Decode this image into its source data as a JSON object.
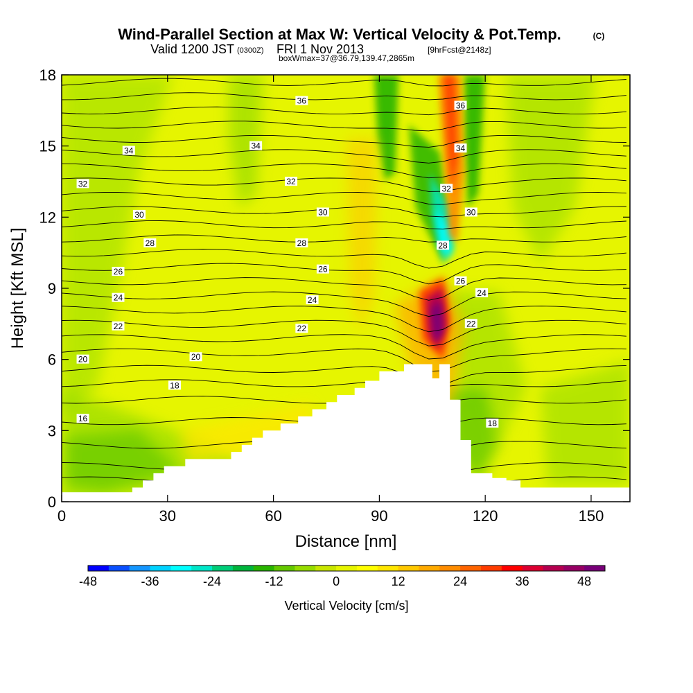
{
  "title": {
    "main": "Wind-Parallel Section at Max W: Vertical Velocity & Pot.Temp.",
    "copyright": "(C)",
    "valid_prefix": "Valid 1200 JST",
    "valid_utc": "(0300Z)",
    "valid_date": "FRI 1 Nov 2013",
    "forecast": "[9hrFcst@2148z]",
    "box_info": "boxWmax=37@36.79,139.47,2865m"
  },
  "chart_data": {
    "type": "heatmap",
    "xlabel": "Distance [nm]",
    "ylabel": "Height [Kft MSL]",
    "xlim": [
      0,
      161
    ],
    "ylim": [
      0,
      18
    ],
    "xticks": [
      "0",
      "30",
      "60",
      "90",
      "120",
      "150"
    ],
    "yticks": [
      "0",
      "3",
      "6",
      "9",
      "12",
      "15",
      "18"
    ],
    "colorbar": {
      "label": "Vertical Velocity [cm/s]",
      "range": [
        -48,
        52
      ],
      "step": 4,
      "ticks": [
        "-48",
        "-36",
        "-24",
        "-12",
        "0",
        "12",
        "24",
        "36",
        "48"
      ],
      "colors": [
        "#0000ff",
        "#0a50ff",
        "#1496ff",
        "#00d2ff",
        "#00ffff",
        "#00e6c8",
        "#00cd78",
        "#00b43c",
        "#28b400",
        "#64c800",
        "#96dc00",
        "#c8e600",
        "#e6f500",
        "#ffff00",
        "#ffe600",
        "#ffc800",
        "#ffaa00",
        "#ff8c00",
        "#ff6400",
        "#ff3c00",
        "#ff0000",
        "#dc0032",
        "#b40050",
        "#960064",
        "#780078"
      ]
    },
    "terrain_profile_nm_kft": [
      [
        0,
        0.4
      ],
      [
        20,
        0.4
      ],
      [
        20,
        0.6
      ],
      [
        23,
        0.6
      ],
      [
        23,
        0.9
      ],
      [
        26,
        0.9
      ],
      [
        26,
        1.2
      ],
      [
        29,
        1.2
      ],
      [
        29,
        1.5
      ],
      [
        35,
        1.5
      ],
      [
        35,
        1.8
      ],
      [
        48,
        1.8
      ],
      [
        48,
        2.1
      ],
      [
        51,
        2.1
      ],
      [
        51,
        2.4
      ],
      [
        54,
        2.4
      ],
      [
        54,
        2.7
      ],
      [
        57,
        2.7
      ],
      [
        57,
        3.0
      ],
      [
        62,
        3.0
      ],
      [
        62,
        3.3
      ],
      [
        67,
        3.3
      ],
      [
        67,
        3.6
      ],
      [
        71,
        3.6
      ],
      [
        71,
        3.9
      ],
      [
        75,
        3.9
      ],
      [
        75,
        4.2
      ],
      [
        78,
        4.2
      ],
      [
        78,
        4.5
      ],
      [
        83,
        4.5
      ],
      [
        83,
        4.8
      ],
      [
        86,
        4.8
      ],
      [
        86,
        5.1
      ],
      [
        90,
        5.1
      ],
      [
        90,
        5.5
      ],
      [
        97,
        5.5
      ],
      [
        97,
        5.8
      ],
      [
        105,
        5.8
      ],
      [
        105,
        5.2
      ],
      [
        107,
        5.2
      ],
      [
        107,
        5.8
      ],
      [
        110,
        5.8
      ],
      [
        110,
        4.3
      ],
      [
        113,
        4.3
      ],
      [
        113,
        2.6
      ],
      [
        116,
        2.6
      ],
      [
        116,
        1.2
      ],
      [
        122,
        1.2
      ],
      [
        122,
        1.0
      ],
      [
        126,
        1.0
      ],
      [
        126,
        0.9
      ],
      [
        130,
        0.9
      ],
      [
        130,
        0.6
      ],
      [
        161,
        0.6
      ]
    ],
    "theta_isentropes_degC": [
      "16",
      "18",
      "20",
      "22",
      "24",
      "26",
      "28",
      "30",
      "32",
      "34",
      "36"
    ],
    "theta_label_positions": [
      {
        "text": "36",
        "x": 68,
        "y": 16.9
      },
      {
        "text": "36",
        "x": 113,
        "y": 16.7
      },
      {
        "text": "34",
        "x": 19,
        "y": 14.8
      },
      {
        "text": "34",
        "x": 55,
        "y": 15.0
      },
      {
        "text": "34",
        "x": 113,
        "y": 14.9
      },
      {
        "text": "32",
        "x": 6,
        "y": 13.4
      },
      {
        "text": "32",
        "x": 65,
        "y": 13.5
      },
      {
        "text": "32",
        "x": 109,
        "y": 13.2
      },
      {
        "text": "30",
        "x": 22,
        "y": 12.1
      },
      {
        "text": "30",
        "x": 74,
        "y": 12.2
      },
      {
        "text": "30",
        "x": 116,
        "y": 12.2
      },
      {
        "text": "28",
        "x": 25,
        "y": 10.9
      },
      {
        "text": "28",
        "x": 68,
        "y": 10.9
      },
      {
        "text": "28",
        "x": 108,
        "y": 10.8
      },
      {
        "text": "26",
        "x": 16,
        "y": 9.7
      },
      {
        "text": "26",
        "x": 74,
        "y": 9.8
      },
      {
        "text": "26",
        "x": 113,
        "y": 9.3
      },
      {
        "text": "24",
        "x": 16,
        "y": 8.6
      },
      {
        "text": "24",
        "x": 71,
        "y": 8.5
      },
      {
        "text": "24",
        "x": 119,
        "y": 8.8
      },
      {
        "text": "22",
        "x": 16,
        "y": 7.4
      },
      {
        "text": "22",
        "x": 68,
        "y": 7.3
      },
      {
        "text": "22",
        "x": 116,
        "y": 7.5
      },
      {
        "text": "20",
        "x": 6,
        "y": 6.0
      },
      {
        "text": "20",
        "x": 38,
        "y": 6.1
      },
      {
        "text": "18",
        "x": 32,
        "y": 4.9
      },
      {
        "text": "18",
        "x": 122,
        "y": 3.3
      },
      {
        "text": "16",
        "x": 6,
        "y": 3.5
      }
    ]
  }
}
